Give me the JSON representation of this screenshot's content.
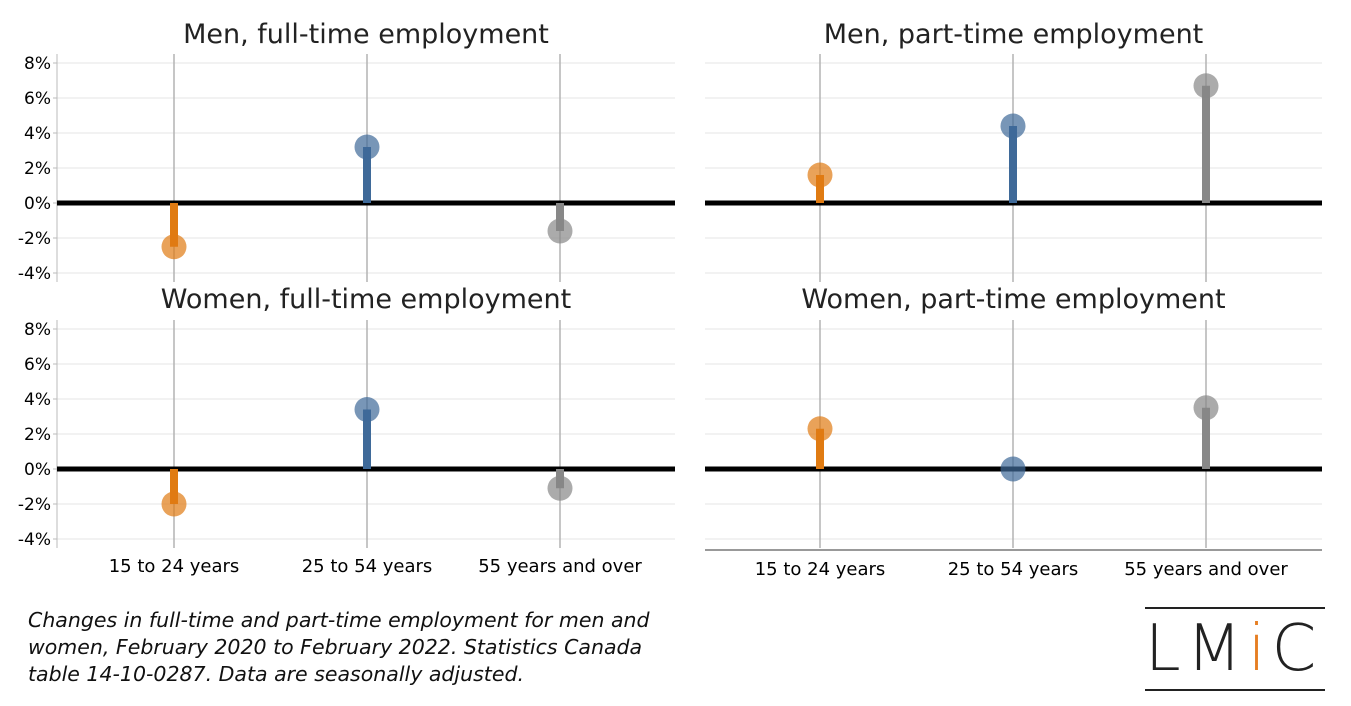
{
  "chart_data": [
    {
      "type": "lollipop",
      "title": "Men, full-time employment",
      "categories": [
        "15 to 24 years",
        "25 to 54 years",
        "55 years and over"
      ],
      "values": [
        -2.5,
        3.2,
        -1.6
      ],
      "ylim": [
        -4,
        8
      ],
      "yticks": [
        "8%",
        "6%",
        "4%",
        "2%",
        "0%",
        "-2%",
        "-4%"
      ],
      "xticks_shown": false,
      "colors": [
        "#e07b12",
        "#3f6a99",
        "#888888"
      ],
      "grid": true
    },
    {
      "type": "lollipop",
      "title": "Men, part-time employment",
      "categories": [
        "15 to 24 years",
        "25 to 54 years",
        "55 years and over"
      ],
      "values": [
        1.6,
        4.4,
        6.7
      ],
      "ylim": [
        -4,
        8
      ],
      "yticks": [],
      "xticks_shown": false,
      "colors": [
        "#e07b12",
        "#3f6a99",
        "#888888"
      ],
      "grid": true
    },
    {
      "type": "lollipop",
      "title": "Women, full-time employment",
      "categories": [
        "15 to 24 years",
        "25 to 54 years",
        "55 years and over"
      ],
      "values": [
        -2.0,
        3.4,
        -1.1
      ],
      "ylim": [
        -4,
        8
      ],
      "yticks": [
        "8%",
        "6%",
        "4%",
        "2%",
        "0%",
        "-2%",
        "-4%"
      ],
      "xticks_shown": true,
      "colors": [
        "#e07b12",
        "#3f6a99",
        "#888888"
      ],
      "grid": true
    },
    {
      "type": "lollipop",
      "title": "Women, part-time employment",
      "categories": [
        "15 to 24 years",
        "25 to 54 years",
        "55 years and over"
      ],
      "values": [
        2.3,
        0.0,
        3.5
      ],
      "ylim": [
        -4,
        8
      ],
      "yticks": [],
      "xticks_shown": true,
      "colors": [
        "#e07b12",
        "#3f6a99",
        "#888888"
      ],
      "grid": true
    }
  ],
  "caption": "Changes in full-time and part-time employment for men and women, February 2020 to February 2022. Statistics Canada table 14-10-0287. Data are seasonally adjusted.",
  "logo": {
    "prefix": "LM",
    "accent": "i",
    "suffix": "C",
    "accent_color": "#e67e22"
  }
}
